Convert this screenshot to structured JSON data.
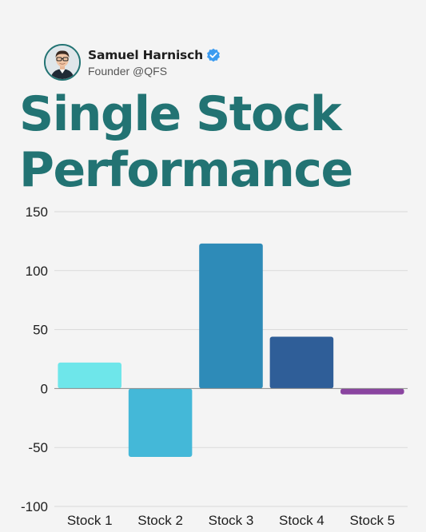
{
  "author": {
    "name": "Samuel Harnisch",
    "role": "Founder @QFS",
    "verified_color": "#3b9bf0"
  },
  "title": {
    "line1": "Single Stock",
    "line2": "Performance"
  },
  "colors": {
    "title": "#227373",
    "background": "#f4f4f4"
  },
  "chart_data": {
    "type": "bar",
    "categories": [
      "Stock 1",
      "Stock 2",
      "Stock 3",
      "Stock 4",
      "Stock 5"
    ],
    "values": [
      22,
      -58,
      123,
      44,
      -5
    ],
    "colors": [
      "#6ee6ea",
      "#44b8d8",
      "#2e8bb8",
      "#2f5e98",
      "#8a44a0"
    ],
    "ylim": [
      -100,
      150
    ],
    "yticks": [
      -100,
      -50,
      0,
      50,
      100,
      150
    ],
    "title": "",
    "xlabel": "",
    "ylabel": "",
    "grid": true
  }
}
